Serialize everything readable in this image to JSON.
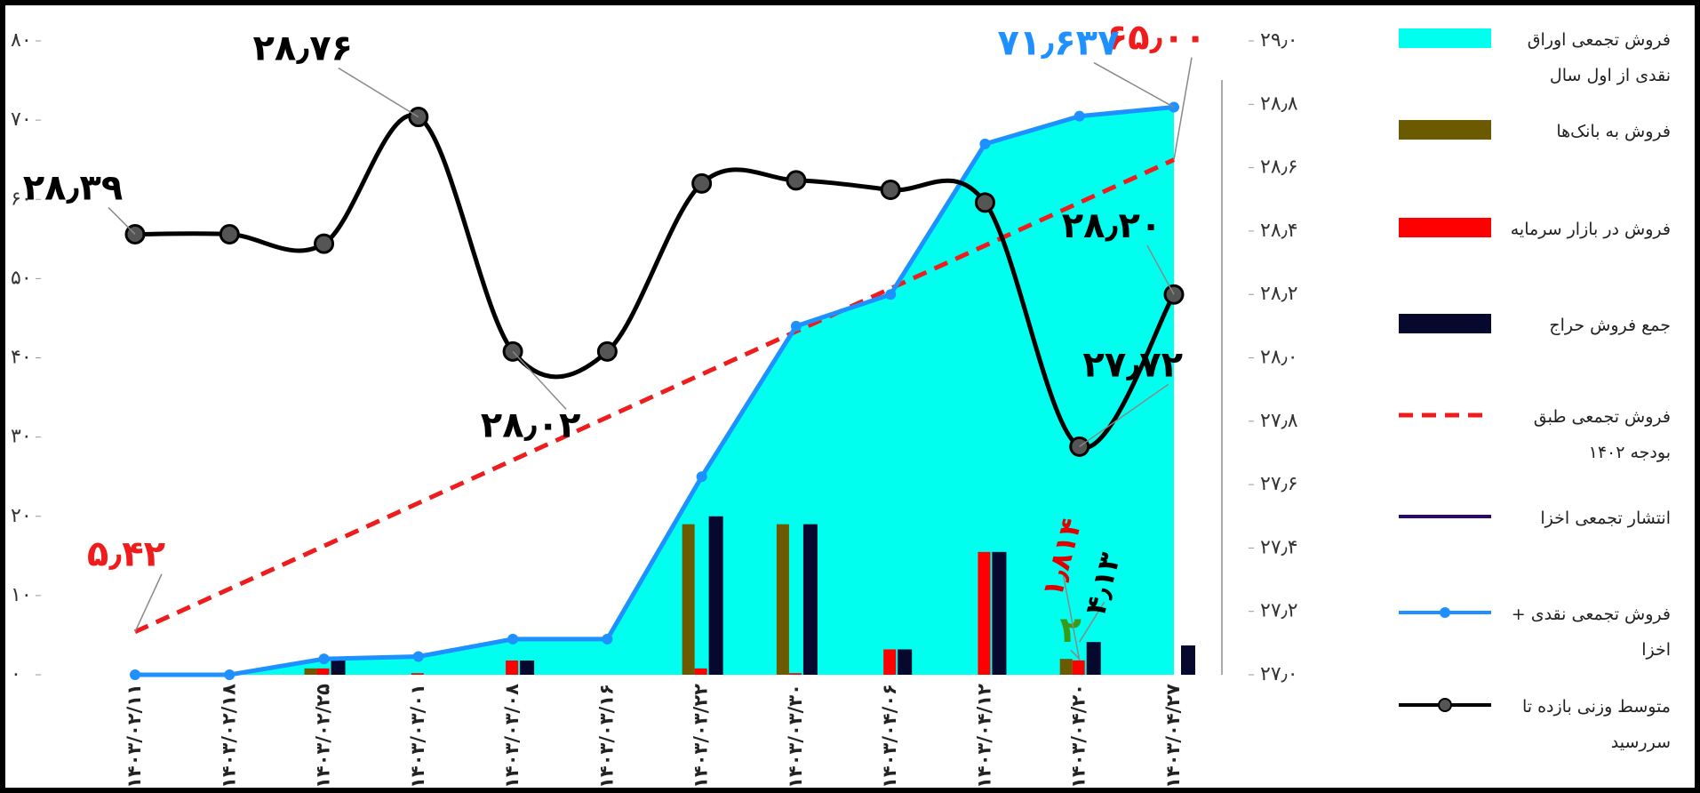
{
  "chart_data": {
    "type": "combo",
    "categories": [
      "۱۴۰۳/۰۲/۱۱",
      "۱۴۰۳/۰۲/۱۸",
      "۱۴۰۳/۰۲/۲۵",
      "۱۴۰۳/۰۳/۰۱",
      "۱۴۰۳/۰۳/۰۸",
      "۱۴۰۳/۰۳/۱۶",
      "۱۴۰۳/۰۳/۲۲",
      "۱۴۰۳/۰۳/۳۰",
      "۱۴۰۳/۰۴/۰۶",
      "۱۴۰۳/۰۴/۱۲",
      "۱۴۰۳/۰۴/۲۰",
      "۱۴۰۳/۰۴/۲۷"
    ],
    "ylim": [
      0,
      80
    ],
    "yticks": [
      {
        "value": 0,
        "label": "۰"
      },
      {
        "value": 10,
        "label": "۱۰"
      },
      {
        "value": 20,
        "label": "۲۰"
      },
      {
        "value": 30,
        "label": "۳۰"
      },
      {
        "value": 40,
        "label": "۴۰"
      },
      {
        "value": 50,
        "label": "۵۰"
      },
      {
        "value": 60,
        "label": "۶۰"
      },
      {
        "value": 70,
        "label": "۷۰"
      },
      {
        "value": 80,
        "label": "۸۰"
      }
    ],
    "y2lim": [
      27.0,
      29.0
    ],
    "y2ticks": [
      {
        "value": 27.0,
        "label": "۲۷٫۰"
      },
      {
        "value": 27.2,
        "label": "۲۷٫۲"
      },
      {
        "value": 27.4,
        "label": "۲۷٫۴"
      },
      {
        "value": 27.6,
        "label": "۲۷٫۶"
      },
      {
        "value": 27.8,
        "label": "۲۷٫۸"
      },
      {
        "value": 28.0,
        "label": "۲۸٫۰"
      },
      {
        "value": 28.2,
        "label": "۲۸٫۲"
      },
      {
        "value": 28.4,
        "label": "۲۸٫۴"
      },
      {
        "value": 28.6,
        "label": "۲۸٫۶"
      },
      {
        "value": 28.8,
        "label": "۲۸٫۸"
      },
      {
        "value": 29.0,
        "label": "۲۹٫۰"
      }
    ],
    "series": [
      {
        "name": "فروش تجمعی اوراق نقدی از اول سال",
        "kind": "area",
        "color": "#00ffee",
        "values": [
          0,
          0,
          2,
          2.3,
          4.5,
          4.5,
          25,
          44,
          48,
          67,
          70.5,
          71.637
        ]
      },
      {
        "name": "فروش به بانک‌ها",
        "kind": "bar",
        "color": "#6b5a00",
        "values": [
          0,
          0,
          0.8,
          0,
          0,
          0,
          19,
          19,
          0,
          0,
          2,
          0
        ],
        "value_labels": [
          null,
          null,
          null,
          null,
          null,
          null,
          null,
          null,
          null,
          null,
          "۲",
          null
        ],
        "label_color": "#3a9a1a"
      },
      {
        "name": "فروش در بازار سرمایه",
        "kind": "bar",
        "color": "#ff0000",
        "values": [
          0,
          0,
          0.8,
          0.2,
          1.8,
          0,
          0.8,
          0.2,
          3.2,
          15.5,
          1.814,
          0
        ],
        "value_labels": [
          null,
          null,
          null,
          null,
          null,
          null,
          null,
          null,
          null,
          null,
          "۱٫۸۱۴",
          null
        ],
        "label_color": "#e00000"
      },
      {
        "name": "جمع فروش حراج",
        "kind": "bar",
        "color": "#06082e",
        "values": [
          0,
          0,
          2,
          0,
          1.8,
          0,
          20,
          19,
          3.2,
          15.5,
          4.13,
          3.7
        ],
        "value_labels": [
          null,
          null,
          null,
          null,
          null,
          null,
          null,
          null,
          null,
          null,
          "۴٫۱۳",
          null
        ],
        "label_color": "#000000"
      },
      {
        "name": "فروش تجمعی طبق بودجه ۱۴۰۲",
        "kind": "dashed",
        "color": "#ee1c1c",
        "values": [
          5.42,
          10.84,
          16.25,
          21.67,
          27.09,
          32.5,
          37.92,
          43.34,
          48.75,
          54.17,
          59.59,
          65.0
        ],
        "value_labels": [
          "۵٫۴۲",
          null,
          null,
          null,
          null,
          null,
          null,
          null,
          null,
          null,
          null,
          "۶۵٫۰۰"
        ],
        "label_color": "#ee1c1c"
      },
      {
        "name": "انتشار تجمعی اخزا",
        "kind": "line",
        "color": "#2a0a6e",
        "values": [
          null,
          null,
          null,
          null,
          null,
          null,
          null,
          null,
          null,
          null,
          null,
          null
        ]
      },
      {
        "name": "فروش تجمعی نقدی + اخزا",
        "kind": "dotline",
        "color": "#1e90ff",
        "values": [
          0,
          0,
          2,
          2.3,
          4.5,
          4.5,
          25,
          44,
          48,
          67,
          70.5,
          71.637
        ],
        "value_labels": [
          null,
          null,
          null,
          null,
          null,
          null,
          null,
          null,
          null,
          null,
          null,
          "۷۱٫۶۳۷"
        ],
        "label_color": "#1e90ff"
      },
      {
        "name": "متوسط وزنی بازده تا سررسید",
        "kind": "smooth",
        "axis": "y2",
        "color": "#000000",
        "values": [
          28.39,
          28.39,
          28.36,
          28.76,
          28.02,
          28.02,
          28.55,
          28.56,
          28.53,
          28.49,
          27.72,
          28.2
        ],
        "value_labels": [
          "۲۸٫۳۹",
          null,
          null,
          "۲۸٫۷۶",
          "۲۸٫۰۲",
          null,
          null,
          null,
          null,
          null,
          "۲۷٫۷۲",
          "۲۸٫۲۰"
        ],
        "label_color": "#000000"
      }
    ]
  }
}
